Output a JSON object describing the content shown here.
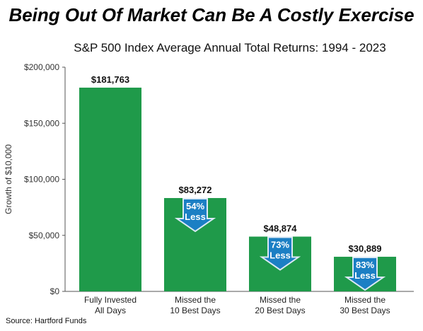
{
  "header": {
    "title": "Being Out Of Market Can Be A Costly Exercise",
    "subtitle": "S&P 500 Index Average Annual Total Returns: 1994 - 2023"
  },
  "footer": {
    "source": "Source: Hartford Funds"
  },
  "colors": {
    "bar": "#1f9a4a",
    "arrow_fill": "#1b7fc4",
    "arrow_stroke": "#dbe9f5",
    "axis": "#555555"
  },
  "chart_data": {
    "type": "bar",
    "title": "Being Out Of Market Can Be A Costly Exercise",
    "subtitle": "S&P 500 Index Average Annual Total Returns: 1994 - 2023",
    "xlabel": "",
    "ylabel": "Growth of $10,000",
    "ylim": [
      0,
      200000
    ],
    "yticks": [
      "$0",
      "$50,000",
      "$100,000",
      "$150,000",
      "$200,000"
    ],
    "ytick_values": [
      0,
      50000,
      100000,
      150000,
      200000
    ],
    "grid": false,
    "categories": [
      [
        "Fully Invested",
        "All Days"
      ],
      [
        "Missed the",
        "10 Best Days"
      ],
      [
        "Missed the",
        "20 Best Days"
      ],
      [
        "Missed the",
        "30 Best Days"
      ]
    ],
    "values": [
      181763,
      83272,
      48874,
      30889
    ],
    "data_labels": [
      "$181,763",
      "$83,272",
      "$48,874",
      "$30,889"
    ],
    "annotations": [
      null,
      [
        "54%",
        "Less"
      ],
      [
        "73%",
        "Less"
      ],
      [
        "83%",
        "Less"
      ]
    ]
  }
}
